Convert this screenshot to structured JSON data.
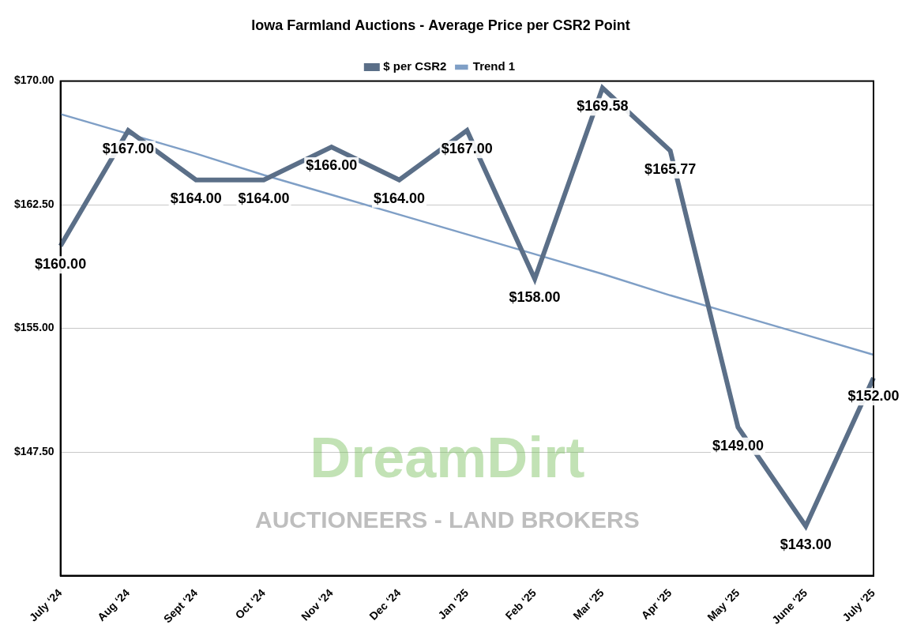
{
  "chart_data": {
    "type": "line",
    "title": "Iowa Farmland Auctions - Average Price per CSR2 Point",
    "annotations": [
      "DreamDirt",
      "AUCTIONEERS - LAND BROKERS"
    ],
    "categories": [
      "July ‘24",
      "Aug ‘24",
      "Sept ‘24",
      "Oct ‘24",
      "Nov ‘24",
      "Dec ‘24",
      "Jan ‘25",
      "Feb ‘25",
      "Mar ‘25",
      "Apr ‘25",
      "May ‘25",
      "June ‘25",
      "July ‘25"
    ],
    "series": [
      {
        "name": "$ per CSR2",
        "color": "#5b6f88",
        "marker": "none",
        "line_style": "solid",
        "data_labels": true,
        "values": [
          160,
          167,
          164,
          164,
          166,
          164,
          167,
          158,
          169.58,
          165.77,
          149,
          143,
          152
        ],
        "value_labels": [
          "$160.00",
          "$167.00",
          "$164.00",
          "$164.00",
          "$166.00",
          "$164.00",
          "$167.00",
          "$158.00",
          "$169.58",
          "$165.77",
          "$149.00",
          "$143.00",
          "$152.00"
        ]
      },
      {
        "name": "Trend 1",
        "color": "#7f9fc6",
        "marker": "none",
        "line_style": "solid",
        "data_labels": false,
        "values": [
          168.0,
          166.8,
          165.6,
          164.3,
          163.1,
          161.9,
          160.7,
          159.5,
          158.3,
          157.0,
          155.8,
          154.6,
          153.4
        ]
      }
    ],
    "ylim": [
      140,
      170
    ],
    "yticks": [
      {
        "value": 147.5,
        "label": "$147.50"
      },
      {
        "value": 155,
        "label": "$155.00"
      },
      {
        "value": 162.5,
        "label": "$162.50"
      },
      {
        "value": 170,
        "label": "$170.00"
      }
    ],
    "grid": true,
    "legend": "top"
  }
}
